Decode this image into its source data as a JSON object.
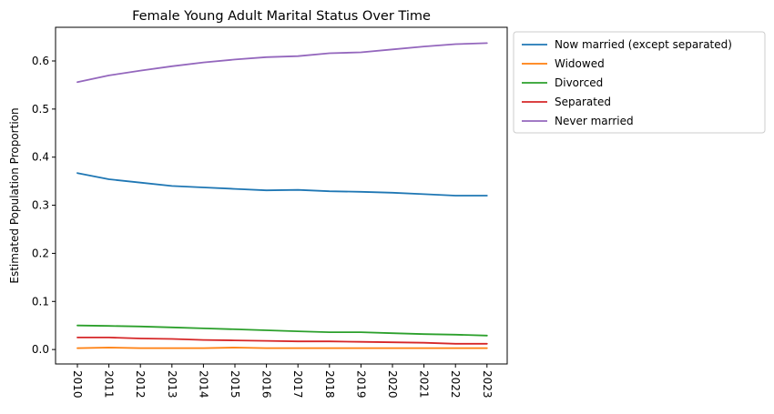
{
  "chart_data": {
    "type": "line",
    "title": "Female Young Adult Marital Status Over Time",
    "xlabel": "",
    "ylabel": "Estimated Population Proportion",
    "x": [
      "2010",
      "2011",
      "2012",
      "2013",
      "2014",
      "2015",
      "2016",
      "2017",
      "2018",
      "2019",
      "2020",
      "2021",
      "2022",
      "2023"
    ],
    "ylim": [
      -0.03,
      0.67
    ],
    "yticks": [
      "0.0",
      "0.1",
      "0.2",
      "0.3",
      "0.4",
      "0.5",
      "0.6"
    ],
    "grid": false,
    "legend_position": "outside-upper-right",
    "series": [
      {
        "name": "Now married (except separated)",
        "color": "#1f77b4",
        "values": [
          0.367,
          0.354,
          0.347,
          0.34,
          0.337,
          0.334,
          0.331,
          0.332,
          0.329,
          0.328,
          0.326,
          0.323,
          0.32,
          0.32
        ]
      },
      {
        "name": "Widowed",
        "color": "#ff7f0e",
        "values": [
          0.003,
          0.004,
          0.003,
          0.003,
          0.003,
          0.004,
          0.003,
          0.003,
          0.003,
          0.003,
          0.003,
          0.003,
          0.003,
          0.003
        ]
      },
      {
        "name": "Divorced",
        "color": "#2ca02c",
        "values": [
          0.05,
          0.049,
          0.048,
          0.046,
          0.044,
          0.042,
          0.04,
          0.038,
          0.036,
          0.036,
          0.034,
          0.032,
          0.031,
          0.029
        ]
      },
      {
        "name": "Separated",
        "color": "#d62728",
        "values": [
          0.025,
          0.025,
          0.023,
          0.022,
          0.02,
          0.019,
          0.018,
          0.017,
          0.017,
          0.016,
          0.015,
          0.014,
          0.012,
          0.012
        ]
      },
      {
        "name": "Never married",
        "color": "#9467bd",
        "values": [
          0.556,
          0.57,
          0.58,
          0.589,
          0.597,
          0.603,
          0.608,
          0.61,
          0.616,
          0.618,
          0.624,
          0.63,
          0.635,
          0.637
        ]
      }
    ]
  }
}
